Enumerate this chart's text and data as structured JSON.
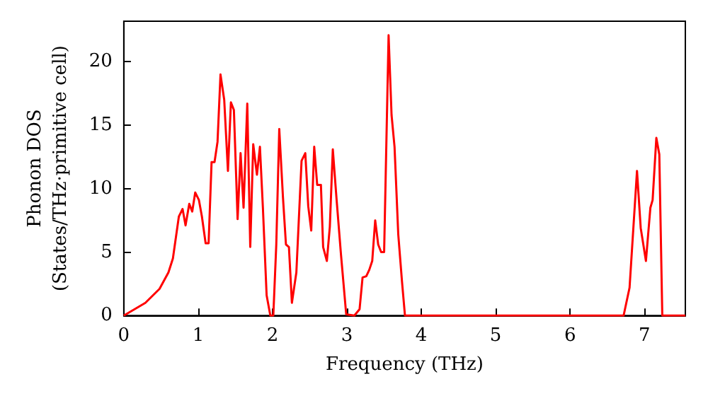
{
  "chart_data": {
    "type": "line",
    "xlabel": "Frequency (THz)",
    "ylabel": "Phonon DOS\n(States/THz·primitive cell)",
    "xlim": [
      0,
      7.55
    ],
    "xticks": [
      0,
      1,
      2,
      3,
      4,
      5,
      6,
      7
    ],
    "ylim": [
      0,
      23.2
    ],
    "yticks": [
      0,
      5,
      10,
      15,
      20
    ],
    "grid": false,
    "marker": "none",
    "line_style": "solid",
    "series": [
      {
        "color": "#ff0000",
        "x": [
          0,
          0.29,
          0.48,
          0.6,
          0.66,
          0.74,
          0.79,
          0.83,
          0.88,
          0.92,
          0.96,
          1.01,
          1.05,
          1.1,
          1.14,
          1.18,
          1.22,
          1.26,
          1.3,
          1.35,
          1.4,
          1.44,
          1.48,
          1.53,
          1.57,
          1.61,
          1.66,
          1.7,
          1.74,
          1.79,
          1.83,
          1.87,
          1.92,
          1.97,
          2.01,
          2.05,
          2.09,
          2.14,
          2.18,
          2.22,
          2.26,
          2.32,
          2.39,
          2.44,
          2.48,
          2.52,
          2.56,
          2.6,
          2.65,
          2.68,
          2.73,
          2.77,
          2.81,
          2.86,
          2.92,
          2.99,
          3.1,
          3.17,
          3.21,
          3.26,
          3.3,
          3.34,
          3.38,
          3.42,
          3.46,
          3.5,
          3.56,
          3.6,
          3.64,
          3.69,
          3.74,
          3.78,
          6.72,
          6.8,
          6.9,
          6.95,
          7.02,
          7.08,
          7.11,
          7.16,
          7.2,
          7.24,
          7.55
        ],
        "values": [
          0,
          1.0,
          2.1,
          3.4,
          4.5,
          7.8,
          8.4,
          7.1,
          8.8,
          8.2,
          9.7,
          9.1,
          7.8,
          5.7,
          5.7,
          12.1,
          12.1,
          13.7,
          19,
          17,
          11.4,
          16.8,
          16.2,
          7.6,
          12.8,
          8.5,
          16.7,
          5.4,
          13.5,
          11.1,
          13.3,
          8.5,
          1.6,
          0,
          0,
          5.6,
          14.7,
          9.3,
          5.6,
          5.4,
          1.0,
          3.4,
          12.2,
          12.8,
          8.6,
          6.7,
          13.3,
          10.3,
          10.3,
          5.4,
          4.3,
          7,
          13.1,
          9.2,
          4.8,
          0.1,
          0,
          0.5,
          3,
          3.1,
          3.6,
          4.3,
          7.5,
          5.6,
          5,
          5,
          22.1,
          15.8,
          13.3,
          6.4,
          2.7,
          0,
          0,
          2.2,
          11.4,
          6.9,
          4.3,
          8.5,
          9.1,
          14,
          12.7,
          0,
          0
        ]
      }
    ]
  }
}
